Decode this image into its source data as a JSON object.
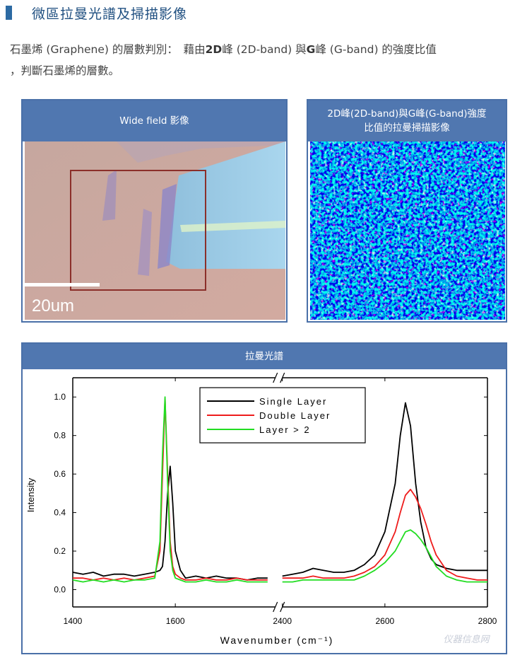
{
  "header": {
    "title": "微區拉曼光譜及掃描影像"
  },
  "intro": {
    "line1": [
      {
        "text": "石墨烯 (Graphene) 的層數判別：　藉由",
        "bold": false
      },
      {
        "text": "2D",
        "bold": true
      },
      {
        "text": "峰 (2D-band) 與",
        "bold": false
      },
      {
        "text": "G",
        "bold": true
      },
      {
        "text": "峰 (G-band) 的強度比值",
        "bold": false
      }
    ],
    "line2": "，判斷石墨烯的層數。"
  },
  "panels": [
    {
      "title": "Wide field 影像",
      "scale_label": "20um"
    },
    {
      "title_lines": [
        "2D峰(2D-band)與G峰(G-band)強度",
        "比值的拉曼掃描影像"
      ]
    }
  ],
  "chart_panel": {
    "title": "拉曼光譜"
  },
  "watermark": "仪器信息网",
  "chart_data": {
    "type": "line",
    "xlabel": "Wavenumber (cm⁻¹)",
    "ylabel": "Intensity",
    "xlim": [
      1400,
      2800
    ],
    "axis_break": [
      1795,
      2400
    ],
    "xticks": [
      1400,
      1600,
      2400,
      2600,
      2800
    ],
    "ylim": [
      -0.09,
      1.1
    ],
    "yticks": [
      {
        "value": 0,
        "label": "0.0"
      },
      0.2,
      0.4,
      0.6,
      0.8,
      {
        "value": 1,
        "label": "1.0"
      }
    ],
    "legend": "upper center",
    "x": [
      1400,
      1420,
      1440,
      1460,
      1480,
      1500,
      1520,
      1540,
      1560,
      1570,
      1575,
      1580,
      1585,
      1590,
      1595,
      1600,
      1610,
      1620,
      1640,
      1660,
      1680,
      1700,
      1720,
      1740,
      1760,
      1780,
      2400,
      2420,
      2440,
      2460,
      2480,
      2500,
      2520,
      2540,
      2560,
      2580,
      2600,
      2620,
      2630,
      2640,
      2650,
      2660,
      2670,
      2680,
      2690,
      2700,
      2720,
      2740,
      2760,
      2780,
      2800
    ],
    "series": [
      {
        "name": "Single Layer",
        "color": "#000000",
        "values": [
          0.09,
          0.08,
          0.09,
          0.07,
          0.08,
          0.08,
          0.07,
          0.08,
          0.09,
          0.1,
          0.12,
          0.25,
          0.5,
          0.64,
          0.45,
          0.2,
          0.1,
          0.06,
          0.07,
          0.06,
          0.07,
          0.06,
          0.06,
          0.05,
          0.06,
          0.06,
          0.07,
          0.08,
          0.09,
          0.11,
          0.1,
          0.09,
          0.09,
          0.1,
          0.13,
          0.18,
          0.3,
          0.55,
          0.8,
          0.97,
          0.85,
          0.55,
          0.35,
          0.22,
          0.16,
          0.13,
          0.11,
          0.1,
          0.1,
          0.1,
          0.1
        ]
      },
      {
        "name": "Double Layer",
        "color": "#ee1c1c",
        "values": [
          0.06,
          0.06,
          0.05,
          0.06,
          0.05,
          0.06,
          0.05,
          0.06,
          0.07,
          0.2,
          0.6,
          0.99,
          0.6,
          0.25,
          0.12,
          0.08,
          0.06,
          0.05,
          0.05,
          0.06,
          0.05,
          0.05,
          0.06,
          0.05,
          0.05,
          0.05,
          0.06,
          0.06,
          0.06,
          0.07,
          0.06,
          0.06,
          0.06,
          0.07,
          0.09,
          0.12,
          0.18,
          0.3,
          0.4,
          0.49,
          0.52,
          0.48,
          0.42,
          0.34,
          0.25,
          0.18,
          0.1,
          0.07,
          0.06,
          0.05,
          0.05
        ]
      },
      {
        "name": "Layer > 2",
        "color": "#22dd22",
        "values": [
          0.05,
          0.04,
          0.05,
          0.04,
          0.05,
          0.04,
          0.05,
          0.05,
          0.06,
          0.25,
          0.7,
          1.0,
          0.55,
          0.2,
          0.1,
          0.06,
          0.05,
          0.04,
          0.04,
          0.05,
          0.04,
          0.04,
          0.05,
          0.04,
          0.04,
          0.04,
          0.04,
          0.04,
          0.05,
          0.05,
          0.05,
          0.05,
          0.05,
          0.05,
          0.07,
          0.1,
          0.14,
          0.2,
          0.25,
          0.3,
          0.31,
          0.29,
          0.26,
          0.22,
          0.17,
          0.12,
          0.07,
          0.05,
          0.04,
          0.04,
          0.04
        ]
      }
    ]
  }
}
